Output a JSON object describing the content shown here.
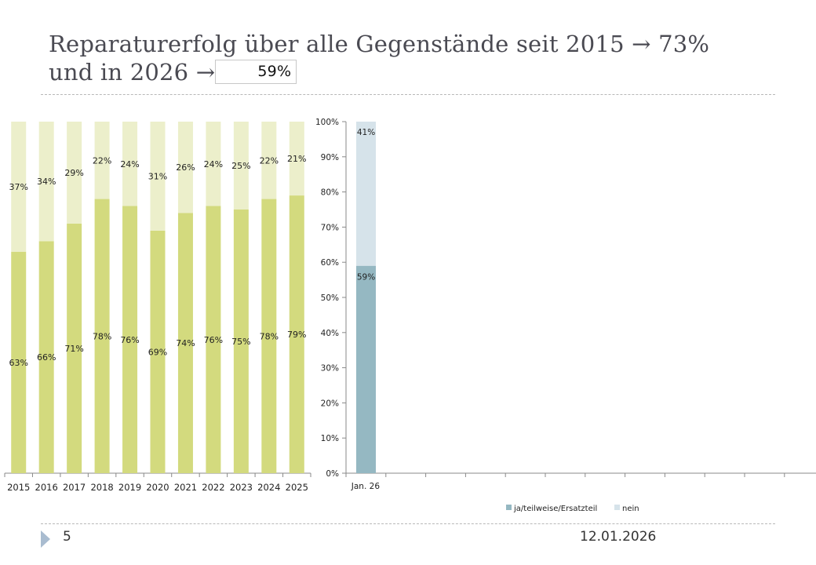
{
  "slide": {
    "title_line1": "Reparaturerfolg über alle Gegenstände seit 2015 → 73%",
    "title_line2": "und in 2026 →",
    "title_value": "59%",
    "page_number": "5",
    "date": "12.01.2026"
  },
  "colors": {
    "left_success": "#d3da7e",
    "left_fail": "#ecefcb",
    "right_success": "#95b8c2",
    "right_fail": "#d6e3ea",
    "axis": "#888888",
    "text": "#222222"
  },
  "chart_data": [
    {
      "type": "bar",
      "stacked": true,
      "title": "",
      "xlabel": "",
      "ylabel": "",
      "ylim": [
        0,
        100
      ],
      "categories": [
        "2015",
        "2016",
        "2017",
        "2018",
        "2019",
        "2020",
        "2021",
        "2022",
        "2023",
        "2024",
        "2025"
      ],
      "series": [
        {
          "name": "ja/teilweise/Ersatzteil",
          "values": [
            63,
            66,
            71,
            78,
            76,
            69,
            74,
            76,
            75,
            78,
            79
          ]
        },
        {
          "name": "nein",
          "values": [
            37,
            34,
            29,
            22,
            24,
            31,
            26,
            24,
            25,
            22,
            21
          ]
        }
      ],
      "data_labels": true,
      "y_axis_visible": false,
      "legend": "none"
    },
    {
      "type": "bar",
      "stacked": true,
      "title": "",
      "xlabel": "",
      "ylabel": "",
      "ylim": [
        0,
        100
      ],
      "yticks": [
        "0%",
        "10%",
        "20%",
        "30%",
        "40%",
        "50%",
        "60%",
        "70%",
        "80%",
        "90%",
        "100%"
      ],
      "categories": [
        "Jan. 26",
        "",
        "",
        "",
        "",
        "",
        "",
        "",
        "",
        "",
        "",
        ""
      ],
      "series": [
        {
          "name": "ja/teilweise/Ersatzteil",
          "values": [
            59
          ]
        },
        {
          "name": "nein",
          "values": [
            41
          ]
        }
      ],
      "data_labels": true,
      "legend": "bottom",
      "legend_entries": [
        "ja/teilweise/Ersatzteil",
        "nein"
      ]
    }
  ]
}
